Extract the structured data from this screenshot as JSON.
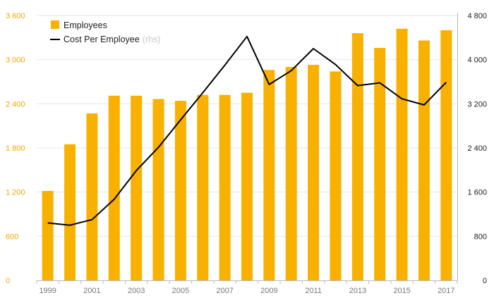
{
  "chart_data": {
    "type": "bar",
    "categories": [
      "1999",
      "2000",
      "2001",
      "2002",
      "2003",
      "2004",
      "2005",
      "2006",
      "2007",
      "2008",
      "2009",
      "2010",
      "2011",
      "2012",
      "2013",
      "2014",
      "2015",
      "2016",
      "2017"
    ],
    "x_tick_labels": [
      "1999",
      "2001",
      "2003",
      "2005",
      "2007",
      "2009",
      "2011",
      "2013",
      "2015",
      "2017"
    ],
    "series": [
      {
        "name": "Employees",
        "type": "bar",
        "axis": "left",
        "color": "#f8b100",
        "values": [
          1215,
          1850,
          2270,
          2510,
          2510,
          2465,
          2440,
          2520,
          2520,
          2550,
          2860,
          2900,
          2930,
          2840,
          3360,
          3160,
          3420,
          3260,
          3400
        ]
      },
      {
        "name": "Cost Per Employee",
        "name_suffix": "(rhs)",
        "type": "line",
        "axis": "right",
        "color": "#000000",
        "values": [
          1040,
          1000,
          1100,
          1470,
          1990,
          2410,
          2910,
          3400,
          3900,
          4420,
          3550,
          3800,
          4200,
          3910,
          3530,
          3580,
          3290,
          3180,
          3590
        ]
      }
    ],
    "y_left": {
      "lim": [
        0,
        3600
      ],
      "ticks": [
        "0",
        "600",
        "1 200",
        "1 800",
        "2 400",
        "3 000",
        "3 600"
      ],
      "values": [
        0,
        600,
        1200,
        1800,
        2400,
        3000,
        3600
      ]
    },
    "y_right": {
      "lim": [
        0,
        4800
      ],
      "ticks": [
        "0",
        "800",
        "1 600",
        "2 400",
        "3 200",
        "4 000",
        "4 800"
      ],
      "values": [
        0,
        800,
        1600,
        2400,
        3200,
        4000,
        4800
      ]
    },
    "grid": true,
    "legend_position": "top-left",
    "colors": {
      "bar": "#f8b100",
      "line": "#000000",
      "left_axis_text": "#f3a600",
      "right_axis_text": "#222222",
      "grid": "#e6e6e6"
    }
  }
}
